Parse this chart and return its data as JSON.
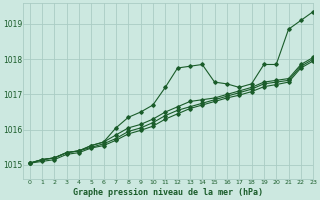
{
  "background_color": "#cce8e0",
  "grid_color": "#aaccc4",
  "line_color": "#1a5c2a",
  "title": "Graphe pression niveau de la mer (hPa)",
  "xlim": [
    -0.5,
    23
  ],
  "ylim": [
    1014.6,
    1019.6
  ],
  "yticks": [
    1015,
    1016,
    1017,
    1018,
    1019
  ],
  "xtick_labels": [
    "0",
    "1",
    "2",
    "3",
    "4",
    "5",
    "6",
    "7",
    "8",
    "9",
    "10",
    "11",
    "12",
    "13",
    "14",
    "15",
    "16",
    "17",
    "18",
    "19",
    "20",
    "21",
    "22",
    "23"
  ],
  "series": [
    [
      1015.05,
      1015.15,
      1015.2,
      1015.35,
      1015.4,
      1015.55,
      1015.65,
      1016.05,
      1016.35,
      1016.5,
      1016.7,
      1017.2,
      1017.75,
      1017.8,
      1017.85,
      1017.35,
      1017.3,
      1017.2,
      1017.3,
      1017.85,
      1017.85,
      1018.85,
      1019.1,
      1019.35
    ],
    [
      1015.05,
      1015.15,
      1015.2,
      1015.35,
      1015.4,
      1015.55,
      1015.65,
      1015.85,
      1016.05,
      1016.15,
      1016.3,
      1016.5,
      1016.65,
      1016.8,
      1016.85,
      1016.9,
      1017.0,
      1017.1,
      1017.2,
      1017.35,
      1017.4,
      1017.45,
      1017.85,
      1018.05
    ],
    [
      1015.05,
      1015.15,
      1015.2,
      1015.35,
      1015.4,
      1015.5,
      1015.6,
      1015.75,
      1015.95,
      1016.05,
      1016.2,
      1016.4,
      1016.55,
      1016.65,
      1016.75,
      1016.85,
      1016.95,
      1017.05,
      1017.15,
      1017.3,
      1017.35,
      1017.4,
      1017.8,
      1018.0
    ],
    [
      1015.05,
      1015.1,
      1015.15,
      1015.3,
      1015.35,
      1015.48,
      1015.55,
      1015.7,
      1015.88,
      1015.98,
      1016.1,
      1016.3,
      1016.45,
      1016.6,
      1016.7,
      1016.8,
      1016.9,
      1016.98,
      1017.08,
      1017.22,
      1017.28,
      1017.35,
      1017.75,
      1017.95
    ]
  ]
}
